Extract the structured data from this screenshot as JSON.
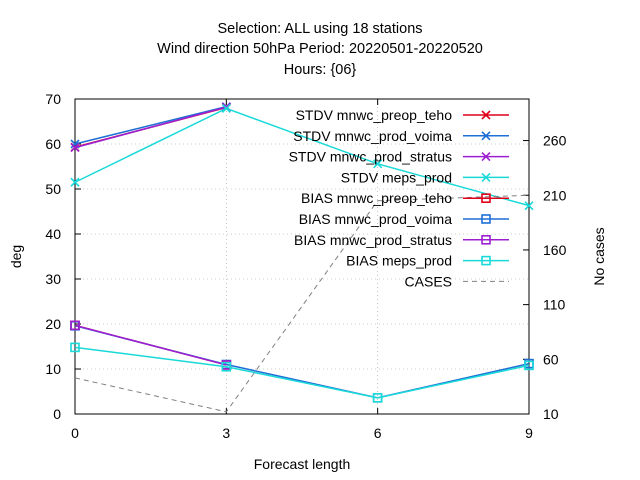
{
  "title_lines": [
    "Selection: ALL using    18 stations",
    "Wind direction 50hPa   Period: 20220501-20220520",
    "Hours: {06}"
  ],
  "chart_data": {
    "type": "line",
    "xlabel": "Forecast length",
    "ylabel": "deg",
    "y2label": "No cases",
    "x": [
      0,
      3,
      6,
      9
    ],
    "xlim": [
      0,
      9
    ],
    "ylim": [
      0,
      70
    ],
    "y2lim": [
      10,
      298
    ],
    "x_ticks": [
      "0",
      "3",
      "6",
      "9"
    ],
    "y_ticks": [
      "0",
      "10",
      "20",
      "30",
      "40",
      "50",
      "60",
      "70"
    ],
    "y2_ticks": [
      "10",
      "60",
      "110",
      "160",
      "210",
      "260"
    ],
    "grid": true,
    "legend_position": "top-right",
    "series": [
      {
        "name": "STDV mnwc_preop_teho",
        "color": "#e0001a",
        "marker": "x",
        "axis": "y1",
        "dash": "solid",
        "values": [
          59.3,
          68.1,
          null,
          null
        ]
      },
      {
        "name": "STDV mnwc_prod_voima",
        "color": "#1e6fd6",
        "marker": "x",
        "axis": "y1",
        "dash": "solid",
        "values": [
          60.0,
          68.3,
          null,
          null
        ]
      },
      {
        "name": "STDV mnwc_prod_stratus",
        "color": "#9c1fd1",
        "marker": "x",
        "axis": "y1",
        "dash": "solid",
        "values": [
          59.2,
          68.2,
          null,
          null
        ]
      },
      {
        "name": "STDV meps_prod",
        "color": "#19d9d9",
        "marker": "x",
        "axis": "y1",
        "dash": "solid",
        "values": [
          51.5,
          67.9,
          55.6,
          46.3
        ]
      },
      {
        "name": "BIAS mnwc_preop_teho",
        "color": "#e0001a",
        "marker": "square",
        "axis": "y1",
        "dash": "solid",
        "values": [
          19.7,
          10.9,
          null,
          null
        ]
      },
      {
        "name": "BIAS mnwc_prod_voima",
        "color": "#1e6fd6",
        "marker": "square",
        "axis": "y1",
        "dash": "solid",
        "values": [
          19.6,
          11.0,
          3.6,
          11.2
        ]
      },
      {
        "name": "BIAS mnwc_prod_stratus",
        "color": "#9c1fd1",
        "marker": "square",
        "axis": "y1",
        "dash": "solid",
        "values": [
          19.7,
          10.9,
          null,
          null
        ]
      },
      {
        "name": "BIAS meps_prod",
        "color": "#19d9d9",
        "marker": "square",
        "axis": "y1",
        "dash": "solid",
        "values": [
          14.8,
          10.5,
          3.6,
          10.8
        ]
      },
      {
        "name": "CASES",
        "color": "#808080",
        "marker": "none",
        "axis": "y2",
        "dash": "dashed",
        "values": [
          43,
          12,
          205,
          210
        ]
      }
    ]
  }
}
